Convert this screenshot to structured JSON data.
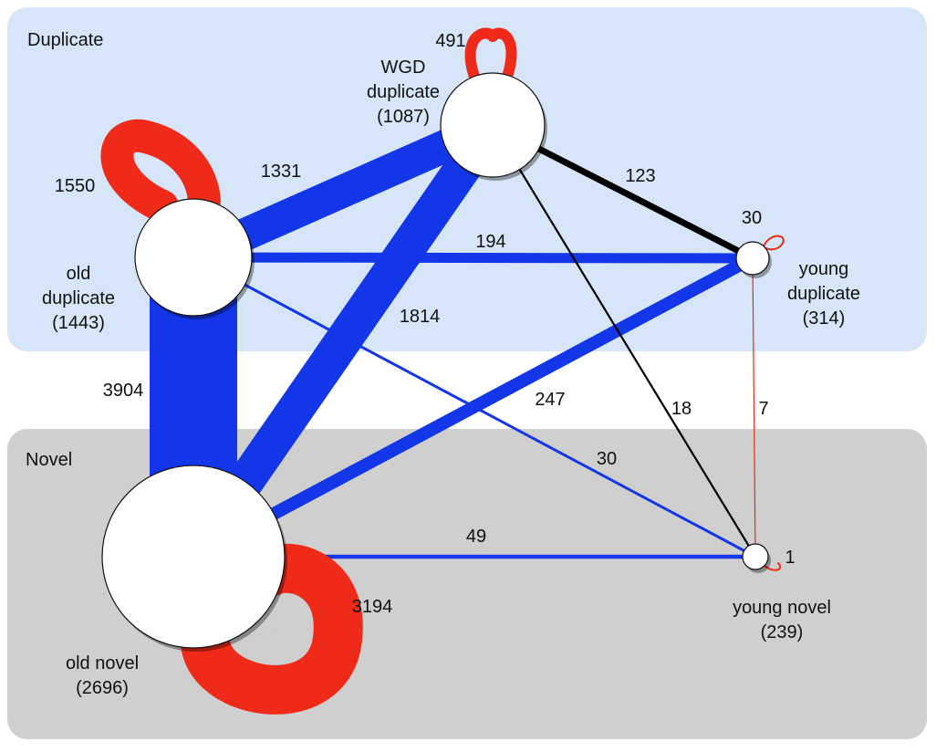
{
  "colors": {
    "duplicate_panel": "#d6e6f8",
    "novel_panel": "#cfcfcf",
    "blue": "#1336e8",
    "red": "#ef2a18",
    "black": "#000000"
  },
  "panels": [
    {
      "id": "duplicate",
      "label": "Duplicate"
    },
    {
      "id": "novel",
      "label": "Novel"
    }
  ],
  "nodes": [
    {
      "id": "wgd",
      "label_lines": [
        "WGD",
        "duplicate",
        "(1087)"
      ]
    },
    {
      "id": "old_dup",
      "label_lines": [
        "old",
        "duplicate",
        "(1443)"
      ]
    },
    {
      "id": "young_dup",
      "label_lines": [
        "young",
        "duplicate",
        "(314)"
      ]
    },
    {
      "id": "old_novel",
      "label_lines": [
        "old novel",
        "(2696)"
      ]
    },
    {
      "id": "young_novel",
      "label_lines": [
        "young novel",
        "(239)"
      ]
    }
  ],
  "edges": [
    {
      "id": "old_dup-old_novel",
      "from": "old_dup",
      "to": "old_novel",
      "value": "3904",
      "color": "blue"
    },
    {
      "id": "wgd-old_novel",
      "from": "wgd",
      "to": "old_novel",
      "value": "1814",
      "color": "blue"
    },
    {
      "id": "old_dup-wgd",
      "from": "old_dup",
      "to": "wgd",
      "value": "1331",
      "color": "blue"
    },
    {
      "id": "old_novel-young_dup",
      "from": "old_novel",
      "to": "young_dup",
      "value": "247",
      "color": "blue"
    },
    {
      "id": "old_dup-young_dup",
      "from": "old_dup",
      "to": "young_dup",
      "value": "194",
      "color": "blue"
    },
    {
      "id": "wgd-young_dup",
      "from": "wgd",
      "to": "young_dup",
      "value": "123",
      "color": "black"
    },
    {
      "id": "old_novel-young_novel",
      "from": "old_novel",
      "to": "young_novel",
      "value": "49",
      "color": "blue"
    },
    {
      "id": "old_dup-young_novel",
      "from": "old_dup",
      "to": "young_novel",
      "value": "30",
      "color": "blue"
    },
    {
      "id": "wgd-young_novel",
      "from": "wgd",
      "to": "young_novel",
      "value": "18",
      "color": "black"
    },
    {
      "id": "young_dup-young_novel",
      "from": "young_dup",
      "to": "young_novel",
      "value": "7",
      "color": "red"
    }
  ],
  "self_loops": [
    {
      "node": "old_novel",
      "value": "3194",
      "color": "red"
    },
    {
      "node": "old_dup",
      "value": "1550",
      "color": "red"
    },
    {
      "node": "wgd",
      "value": "491",
      "color": "red"
    },
    {
      "node": "young_dup",
      "value": "30",
      "color": "red"
    },
    {
      "node": "young_novel",
      "value": "1",
      "color": "red"
    }
  ]
}
